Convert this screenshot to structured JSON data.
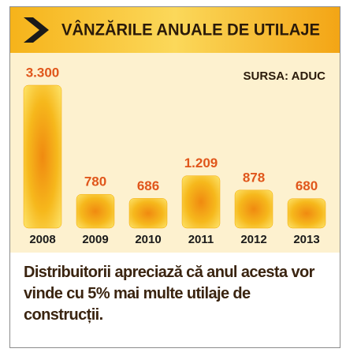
{
  "chart_data": {
    "type": "bar",
    "title": "VÂNZĂRILE ANUALE DE UTILAJE",
    "source": "SURSA: ADUC",
    "categories": [
      "2008",
      "2009",
      "2010",
      "2011",
      "2012",
      "2013"
    ],
    "values": [
      3300,
      780,
      686,
      1209,
      878,
      680
    ],
    "value_labels": [
      "3.300",
      "780",
      "686",
      "1.209",
      "878",
      "680"
    ],
    "color": "#f5a800",
    "label_color": "#e0561b",
    "note": "Distribuitorii apreciază că anul acesta vor vinde cu 5% mai multe utilaje de construcții."
  }
}
